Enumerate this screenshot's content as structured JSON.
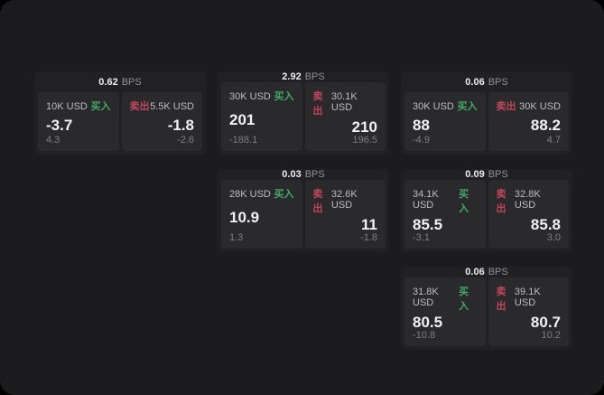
{
  "labels": {
    "bps": "BPS",
    "buy": "买入",
    "sell": "卖出"
  },
  "colors": {
    "window_bg": "#1c1c1e",
    "card_bg": "#212124",
    "panel_bg": "#2a2a2d",
    "buy_accent": "#41ab66",
    "sell_accent": "#c2455a"
  },
  "cards": [
    {
      "bps": "0.62",
      "buy": {
        "size": "10K USD",
        "price": "-3.7",
        "delta": "4.3"
      },
      "sell": {
        "size": "5.5K USD",
        "price": "-1.8",
        "delta": "-2.6"
      }
    },
    {
      "bps": "2.92",
      "buy": {
        "size": "30K USD",
        "price": "201",
        "delta": "-188.1"
      },
      "sell": {
        "size": "30.1K USD",
        "price": "210",
        "delta": "196.5"
      }
    },
    {
      "bps": "0.06",
      "buy": {
        "size": "30K USD",
        "price": "88",
        "delta": "-4.9"
      },
      "sell": {
        "size": "30K USD",
        "price": "88.2",
        "delta": "4.7"
      }
    },
    {
      "bps": "0.03",
      "buy": {
        "size": "28K USD",
        "price": "10.9",
        "delta": "1.3"
      },
      "sell": {
        "size": "32.6K USD",
        "price": "11",
        "delta": "-1.8"
      }
    },
    {
      "bps": "0.09",
      "buy": {
        "size": "34.1K USD",
        "price": "85.5",
        "delta": "-3.1"
      },
      "sell": {
        "size": "32.8K USD",
        "price": "85.8",
        "delta": "3.0"
      }
    },
    {
      "bps": "0.06",
      "buy": {
        "size": "31.8K USD",
        "price": "80.5",
        "delta": "-10.8"
      },
      "sell": {
        "size": "39.1K USD",
        "price": "80.7",
        "delta": "10.2"
      }
    }
  ]
}
